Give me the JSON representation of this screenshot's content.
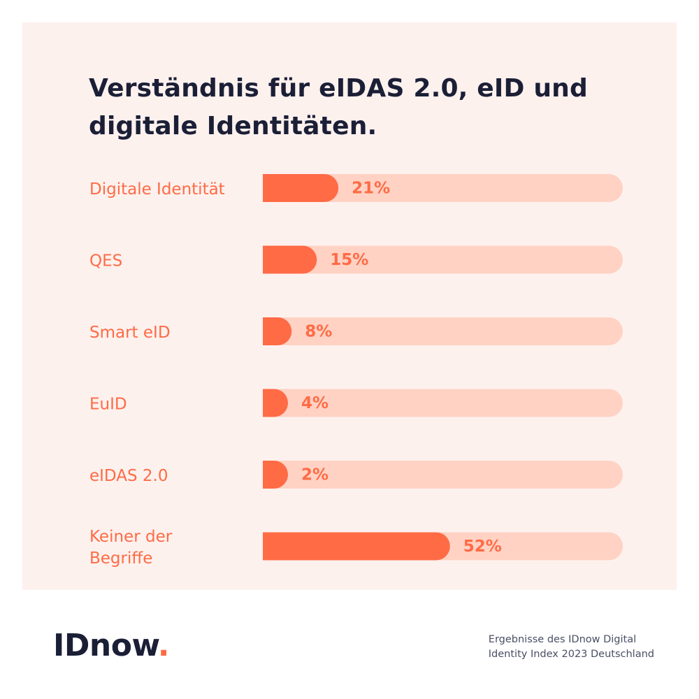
{
  "title_lines": [
    "Verständnis für eIDAS 2.0, eID und",
    "digitale Identitäten."
  ],
  "chart_data": {
    "type": "bar",
    "orientation": "horizontal",
    "title": "Verständnis für eIDAS 2.0, eID und digitale Identitäten.",
    "categories": [
      [
        "Digitale Identität"
      ],
      [
        "QES"
      ],
      [
        "Smart eID"
      ],
      [
        "EuID"
      ],
      [
        "eIDAS 2.0"
      ],
      [
        "Keiner der",
        "Begriffe"
      ]
    ],
    "values": [
      21,
      15,
      8,
      4,
      2,
      52
    ],
    "value_labels": [
      "21%",
      "15%",
      "8%",
      "4%",
      "2%",
      "52%"
    ],
    "unit": "%",
    "xlim": [
      0,
      100
    ],
    "colors": {
      "bar": "#ff6b45",
      "track": "#ffd2c4",
      "label": "#ff6b45"
    }
  },
  "logo": {
    "text": "IDnow",
    "dot": "."
  },
  "footer_lines": [
    "Ergebnisse des IDnow Digital",
    "Identity Index 2023 Deutschland"
  ],
  "colors": {
    "panel": "#fdf1ee",
    "title": "#1b1f36",
    "accent": "#ff6b45"
  }
}
